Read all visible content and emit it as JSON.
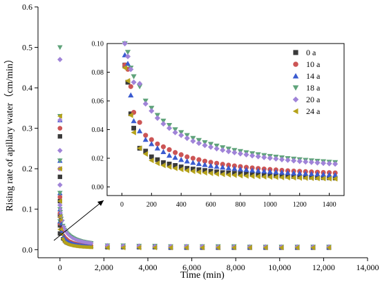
{
  "chart_data": [
    {
      "type": "scatter",
      "title": "",
      "xlabel": "Time (min)",
      "ylabel": "Rising rate of apillary water（cm/min）",
      "xlim": [
        -1000,
        14000
      ],
      "ylim": [
        -0.02,
        0.6
      ],
      "x_ticks": [
        0,
        2000,
        4000,
        6000,
        8000,
        10000,
        12000,
        14000
      ],
      "x_tick_labels": [
        "0",
        "2,000",
        "4,000",
        "6,000",
        "8,000",
        "10,000",
        "12,000",
        "14,000"
      ],
      "y_ticks": [
        0.0,
        0.1,
        0.2,
        0.3,
        0.4,
        0.5,
        0.6
      ],
      "y_tick_labels": [
        "0.0",
        "0.1",
        "0.2",
        "0.3",
        "0.4",
        "0.5",
        "0.6"
      ],
      "series": [
        {
          "name": "0 a",
          "color": "#3a3a3a",
          "marker": "square",
          "x": [
            0,
            0,
            0,
            0,
            0,
            0,
            2160,
            2880,
            3600,
            4320,
            5040,
            5760,
            6480,
            7200,
            7920,
            8640,
            9360,
            10080,
            10800,
            11520,
            12240
          ],
          "y": [
            0.28,
            0.18,
            0.12,
            0.085,
            0.06,
            0.04,
            0.006,
            0.006,
            0.006,
            0.006,
            0.005,
            0.005,
            0.005,
            0.005,
            0.005,
            0.005,
            0.005,
            0.005,
            0.005,
            0.005,
            0.005
          ]
        },
        {
          "name": "10 a",
          "color": "#cc5555",
          "marker": "circle",
          "x": [
            0,
            0,
            0,
            0,
            0,
            2160,
            2880,
            3600,
            4320,
            5040,
            5760,
            6480,
            7200,
            7920,
            8640,
            9360,
            10080,
            10800,
            11520,
            12240
          ],
          "y": [
            0.3,
            0.2,
            0.13,
            0.09,
            0.065,
            0.008,
            0.008,
            0.007,
            0.007,
            0.007,
            0.006,
            0.006,
            0.006,
            0.006,
            0.006,
            0.006,
            0.006,
            0.006,
            0.006,
            0.006
          ]
        },
        {
          "name": "14 a",
          "color": "#3a5bd0",
          "marker": "triangle-up",
          "x": [
            0,
            0,
            0,
            0,
            0,
            2160,
            2880,
            3600,
            4320,
            5040,
            5760,
            6480,
            7200,
            7920,
            8640,
            9360,
            10080,
            10800,
            11520,
            12240
          ],
          "y": [
            0.32,
            0.22,
            0.14,
            0.1,
            0.07,
            0.008,
            0.007,
            0.007,
            0.007,
            0.006,
            0.006,
            0.006,
            0.006,
            0.006,
            0.006,
            0.006,
            0.006,
            0.006,
            0.006,
            0.006
          ]
        },
        {
          "name": "18 a",
          "color": "#5fa37a",
          "marker": "triangle-down",
          "x": [
            0,
            0,
            0,
            0,
            0,
            0,
            2160,
            2880,
            3600,
            4320,
            5040,
            5760,
            6480,
            7200,
            7920,
            8640,
            9360,
            10080,
            10800,
            11520,
            12240
          ],
          "y": [
            0.5,
            0.33,
            0.22,
            0.14,
            0.1,
            0.07,
            0.01,
            0.01,
            0.009,
            0.009,
            0.008,
            0.008,
            0.008,
            0.008,
            0.008,
            0.007,
            0.007,
            0.007,
            0.007,
            0.007,
            0.007
          ]
        },
        {
          "name": "20 a",
          "color": "#a084d8",
          "marker": "diamond",
          "x": [
            0,
            0,
            0,
            0,
            0,
            0,
            0,
            2160,
            2880,
            3600,
            4320,
            5040,
            5760,
            6480,
            7200,
            7920,
            8640,
            9360,
            10080,
            10800,
            11520,
            12240
          ],
          "y": [
            0.47,
            0.32,
            0.245,
            0.2,
            0.16,
            0.11,
            0.08,
            0.01,
            0.009,
            0.009,
            0.008,
            0.008,
            0.008,
            0.008,
            0.007,
            0.007,
            0.007,
            0.007,
            0.007,
            0.007,
            0.007,
            0.007
          ]
        },
        {
          "name": "24 a",
          "color": "#b5a21a",
          "marker": "triangle-left",
          "x": [
            0,
            0,
            0,
            0,
            0,
            2160,
            2880,
            3600,
            4320,
            5040,
            5760,
            6480,
            7200,
            7920,
            8640,
            9360,
            10080,
            10800,
            11520,
            12240
          ],
          "y": [
            0.33,
            0.2,
            0.12,
            0.08,
            0.05,
            0.005,
            0.005,
            0.005,
            0.005,
            0.005,
            0.005,
            0.005,
            0.005,
            0.005,
            0.005,
            0.005,
            0.005,
            0.005,
            0.005,
            0.005
          ]
        }
      ],
      "callout": "inset zooms into 0–1440 min"
    },
    {
      "type": "scatter",
      "title": "",
      "xlabel": "",
      "ylabel": "",
      "xlim": [
        -100,
        1500
      ],
      "ylim": [
        -0.006,
        0.1
      ],
      "x_ticks": [
        0,
        200,
        400,
        600,
        800,
        1000,
        1200,
        1400
      ],
      "x_tick_labels": [
        "0",
        "200",
        "400",
        "600",
        "800",
        "1000",
        "1200",
        "1400"
      ],
      "y_ticks": [
        0.0,
        0.02,
        0.04,
        0.06,
        0.08,
        0.1
      ],
      "y_tick_labels": [
        "0.00",
        "0.02",
        "0.04",
        "0.06",
        "0.08",
        "0.10"
      ],
      "legend": "top-right",
      "x": [
        20,
        40,
        60,
        80,
        120,
        160,
        200,
        240,
        280,
        320,
        360,
        400,
        440,
        480,
        520,
        560,
        600,
        640,
        680,
        720,
        760,
        800,
        840,
        880,
        920,
        960,
        1000,
        1040,
        1080,
        1120,
        1160,
        1200,
        1240,
        1280,
        1320,
        1360,
        1400,
        1440
      ],
      "series": [
        {
          "name": "0 a",
          "color": "#3a3a3a",
          "marker": "square",
          "y": [
            0.085,
            0.073,
            0.051,
            0.041,
            0.027,
            0.025,
            0.021,
            0.019,
            0.017,
            0.016,
            0.015,
            0.014,
            0.013,
            0.0125,
            0.012,
            0.0115,
            0.011,
            0.0105,
            0.01,
            0.0098,
            0.0095,
            0.0092,
            0.009,
            0.0087,
            0.0085,
            0.0082,
            0.008,
            0.0078,
            0.0076,
            0.0075,
            0.0073,
            0.0071,
            0.007,
            0.0068,
            0.0066,
            0.0065,
            0.0064,
            0.0062
          ]
        },
        {
          "name": "10 a",
          "color": "#cc5555",
          "marker": "circle",
          "y": [
            0.085,
            0.082,
            0.07,
            0.052,
            0.045,
            0.036,
            0.033,
            0.03,
            0.028,
            0.026,
            0.024,
            0.0225,
            0.021,
            0.02,
            0.019,
            0.018,
            0.0172,
            0.0165,
            0.0158,
            0.0152,
            0.0147,
            0.0142,
            0.0137,
            0.0133,
            0.0129,
            0.0125,
            0.0122,
            0.0119,
            0.0116,
            0.0113,
            0.0111,
            0.0109,
            0.0107,
            0.0105,
            0.0103,
            0.0101,
            0.01,
            0.0098
          ]
        },
        {
          "name": "14 a",
          "color": "#3a5bd0",
          "marker": "triangle-up",
          "y": [
            0.092,
            0.086,
            0.064,
            0.046,
            0.039,
            0.033,
            0.03,
            0.027,
            0.0245,
            0.022,
            0.0205,
            0.019,
            0.018,
            0.017,
            0.0162,
            0.0155,
            0.0148,
            0.0142,
            0.0137,
            0.0132,
            0.0128,
            0.0124,
            0.012,
            0.0116,
            0.0113,
            0.011,
            0.0107,
            0.0104,
            0.0101,
            0.0099,
            0.0097,
            0.0095,
            0.0093,
            0.0091,
            0.0089,
            0.0087,
            0.0085,
            0.0083
          ]
        },
        {
          "name": "18 a",
          "color": "#5fa37a",
          "marker": "triangle-down",
          "y": [
            0.1,
            0.094,
            0.083,
            0.077,
            0.07,
            0.06,
            0.055,
            0.05,
            0.046,
            0.043,
            0.04,
            0.038,
            0.036,
            0.034,
            0.0325,
            0.031,
            0.0298,
            0.0286,
            0.0275,
            0.0265,
            0.0256,
            0.0248,
            0.024,
            0.0233,
            0.0226,
            0.022,
            0.0214,
            0.0209,
            0.0204,
            0.0199,
            0.0195,
            0.0191,
            0.0187,
            0.0183,
            0.018,
            0.0177,
            0.0174,
            0.0171
          ]
        },
        {
          "name": "20 a",
          "color": "#a084d8",
          "marker": "diamond",
          "y": [
            0.1,
            0.091,
            0.082,
            0.073,
            0.072,
            0.058,
            0.053,
            0.048,
            0.044,
            0.041,
            0.038,
            0.036,
            0.034,
            0.032,
            0.0305,
            0.029,
            0.0278,
            0.0267,
            0.0257,
            0.0248,
            0.024,
            0.0232,
            0.0225,
            0.0218,
            0.0212,
            0.0206,
            0.0201,
            0.0196,
            0.0191,
            0.0187,
            0.0183,
            0.0179,
            0.0175,
            0.0172,
            0.0169,
            0.0166,
            0.0163,
            0.016
          ]
        },
        {
          "name": "24 a",
          "color": "#b5a21a",
          "marker": "triangle-left",
          "y": [
            0.083,
            0.074,
            0.05,
            0.038,
            0.027,
            0.023,
            0.0185,
            0.0165,
            0.015,
            0.014,
            0.013,
            0.0122,
            0.0115,
            0.0109,
            0.0104,
            0.0099,
            0.0095,
            0.0091,
            0.0088,
            0.0085,
            0.0082,
            0.0079,
            0.0077,
            0.0075,
            0.0073,
            0.0071,
            0.0069,
            0.0068,
            0.0066,
            0.0065,
            0.0064,
            0.0063,
            0.0062,
            0.0061,
            0.006,
            0.0059,
            0.0058,
            0.0057
          ]
        }
      ]
    }
  ]
}
